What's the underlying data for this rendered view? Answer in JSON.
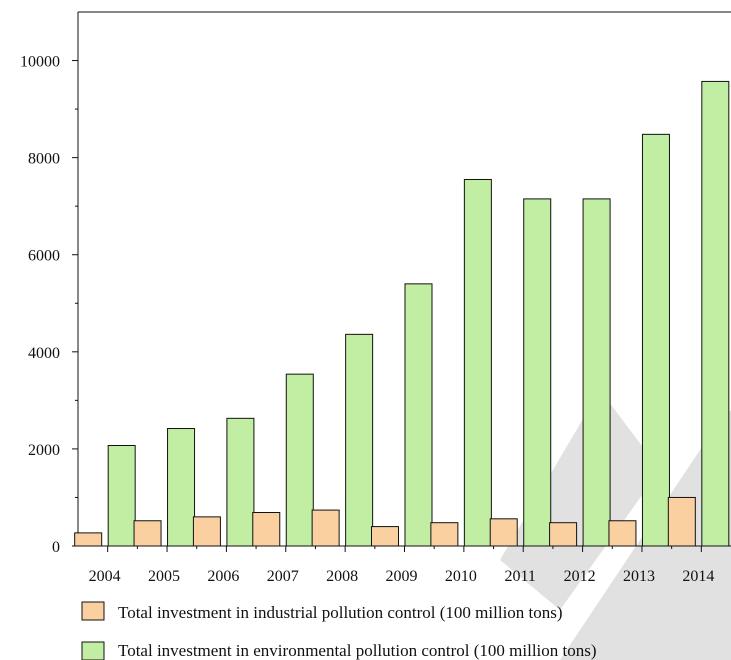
{
  "chart_data": {
    "type": "bar",
    "title": "",
    "xlabel": "",
    "ylabel": "",
    "ylim": [
      0,
      11000
    ],
    "y_ticks": [
      "0",
      "2000",
      "4000",
      "6000",
      "8000",
      "10000"
    ],
    "categories": [
      "2004",
      "2005",
      "2006",
      "2007",
      "2008",
      "2009",
      "2010",
      "2011",
      "2012",
      "2013",
      "2014"
    ],
    "series": [
      {
        "name": "Total investment in industrial pollution control (100 million tons)",
        "color": "#fbd0a0",
        "values": [
          270,
          520,
          600,
          690,
          740,
          400,
          480,
          560,
          480,
          520,
          1000
        ]
      },
      {
        "name": "Total investment in environmental pollution control (100 million tons)",
        "color": "#c1eea3",
        "values": [
          2070,
          2420,
          2630,
          3540,
          4360,
          5400,
          7550,
          7150,
          7150,
          8480,
          9570
        ]
      }
    ],
    "legend_position": "bottom",
    "grid": false
  }
}
